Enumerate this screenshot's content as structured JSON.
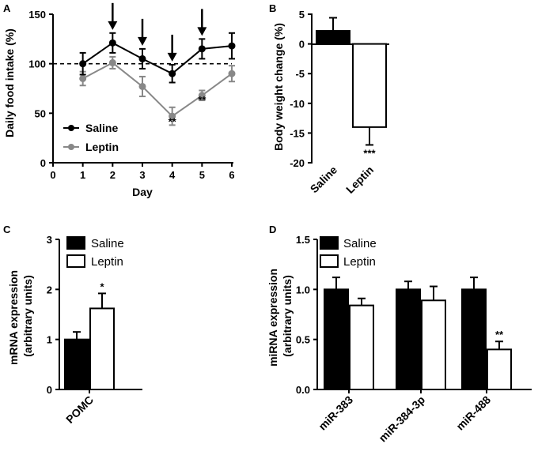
{
  "chart_data": [
    {
      "panel": "A",
      "type": "line",
      "xlabel": "Day",
      "ylabel": "Daily food intake (%)",
      "xlim": [
        0,
        6
      ],
      "ylim": [
        0,
        150
      ],
      "xticks": [
        "0",
        "1",
        "2",
        "3",
        "4",
        "5",
        "6"
      ],
      "yticks": [
        "0",
        "50",
        "100",
        "150"
      ],
      "x": [
        1,
        2,
        3,
        4,
        5,
        6
      ],
      "reference_line": 100,
      "arrows_at_days": [
        2,
        3,
        4,
        5
      ],
      "series": [
        {
          "name": "Saline",
          "color": "#000000",
          "values": [
            100,
            121,
            105,
            90,
            115,
            118
          ],
          "errors": [
            11,
            10,
            10,
            9,
            10,
            13
          ]
        },
        {
          "name": "Leptin",
          "color": "#888888",
          "values": [
            85,
            101,
            77,
            47,
            68,
            90
          ],
          "errors": [
            7,
            6,
            10,
            9,
            5,
            8
          ]
        }
      ],
      "annotations": [
        {
          "x": 4,
          "y": 38,
          "text": "**"
        },
        {
          "x": 5,
          "y": 60,
          "text": "**"
        }
      ]
    },
    {
      "panel": "B",
      "type": "bar",
      "ylabel": "Body weight change (%)",
      "ylim": [
        -20,
        5
      ],
      "yticks": [
        "5",
        "0",
        "-5",
        "-10",
        "-15",
        "-20"
      ],
      "categories": [
        "Saline",
        "Leptin"
      ],
      "values": [
        2.2,
        -14.0
      ],
      "errors": [
        2.2,
        3.0
      ],
      "fills": [
        "#000000",
        "#ffffff"
      ],
      "annotations": [
        {
          "category": "Leptin",
          "text": "***"
        }
      ]
    },
    {
      "panel": "C",
      "type": "bar",
      "ylabel": "mRNA expression\n(arbitrary units)",
      "ylim": [
        0,
        3
      ],
      "yticks": [
        "0",
        "1",
        "2",
        "3"
      ],
      "categories": [
        "POMC"
      ],
      "series": [
        {
          "name": "Saline",
          "fill": "#000000",
          "values": [
            1.0
          ],
          "errors": [
            0.15
          ]
        },
        {
          "name": "Leptin",
          "fill": "#ffffff",
          "values": [
            1.62
          ],
          "errors": [
            0.3
          ]
        }
      ],
      "annotations": [
        {
          "category": "POMC",
          "series": "Leptin",
          "text": "*"
        }
      ]
    },
    {
      "panel": "D",
      "type": "bar",
      "ylabel": "miRNA expression\n(arbitrary units)",
      "ylim": [
        0,
        1.5
      ],
      "yticks": [
        "0.0",
        "0.5",
        "1.0",
        "1.5"
      ],
      "categories": [
        "miR-383",
        "miR-384-3p",
        "miR-488"
      ],
      "series": [
        {
          "name": "Saline",
          "fill": "#000000",
          "values": [
            1.0,
            1.0,
            1.0
          ],
          "errors": [
            0.12,
            0.08,
            0.12
          ]
        },
        {
          "name": "Leptin",
          "fill": "#ffffff",
          "values": [
            0.84,
            0.89,
            0.4
          ],
          "errors": [
            0.07,
            0.14,
            0.08
          ]
        }
      ],
      "annotations": [
        {
          "category": "miR-488",
          "series": "Leptin",
          "text": "**"
        }
      ]
    }
  ]
}
